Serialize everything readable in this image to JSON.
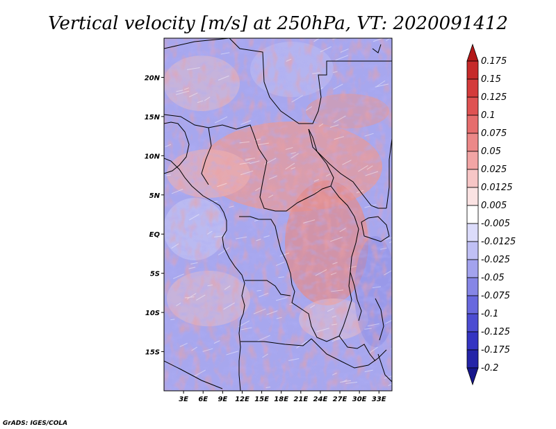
{
  "chart_data": {
    "type": "heatmap",
    "title": "Vertical velocity [m/s] at 250hPa, VT: 2020091412",
    "variable": "Vertical velocity",
    "units": "m/s",
    "level": "250hPa",
    "valid_time": "2020091412",
    "x_ticks": [
      "3E",
      "6E",
      "9E",
      "12E",
      "15E",
      "18E",
      "21E",
      "24E",
      "27E",
      "30E",
      "33E"
    ],
    "x_tick_values": [
      3,
      6,
      9,
      12,
      15,
      18,
      21,
      24,
      27,
      30,
      33
    ],
    "y_ticks": [
      "20N",
      "15N",
      "10N",
      "5N",
      "EQ",
      "5S",
      "10S",
      "15S"
    ],
    "y_tick_values": [
      20,
      15,
      10,
      5,
      0,
      -5,
      -10,
      -15
    ],
    "xlim": [
      0,
      35
    ],
    "ylim": [
      -20,
      25
    ],
    "colorbar_levels": [
      "0.175",
      "0.15",
      "0.125",
      "0.1",
      "0.075",
      "0.05",
      "0.025",
      "0.0125",
      "0.005",
      "-0.005",
      "-0.0125",
      "-0.025",
      "-0.05",
      "-0.075",
      "-0.1",
      "-0.125",
      "-0.175",
      "-0.2"
    ],
    "colorbar_colors": [
      "#b31818",
      "#c62a2a",
      "#d43b3b",
      "#df5252",
      "#e66d6d",
      "#ec8888",
      "#f2a5a5",
      "#f7c6c6",
      "#fbe3e3",
      "#ffffff",
      "#dcdcfb",
      "#c0c0f5",
      "#a3a3ee",
      "#8686e6",
      "#6868de",
      "#4c4cd2",
      "#3434c2",
      "#2424a8",
      "#16168c"
    ]
  },
  "credit": "GrADS: IGES/COLA"
}
